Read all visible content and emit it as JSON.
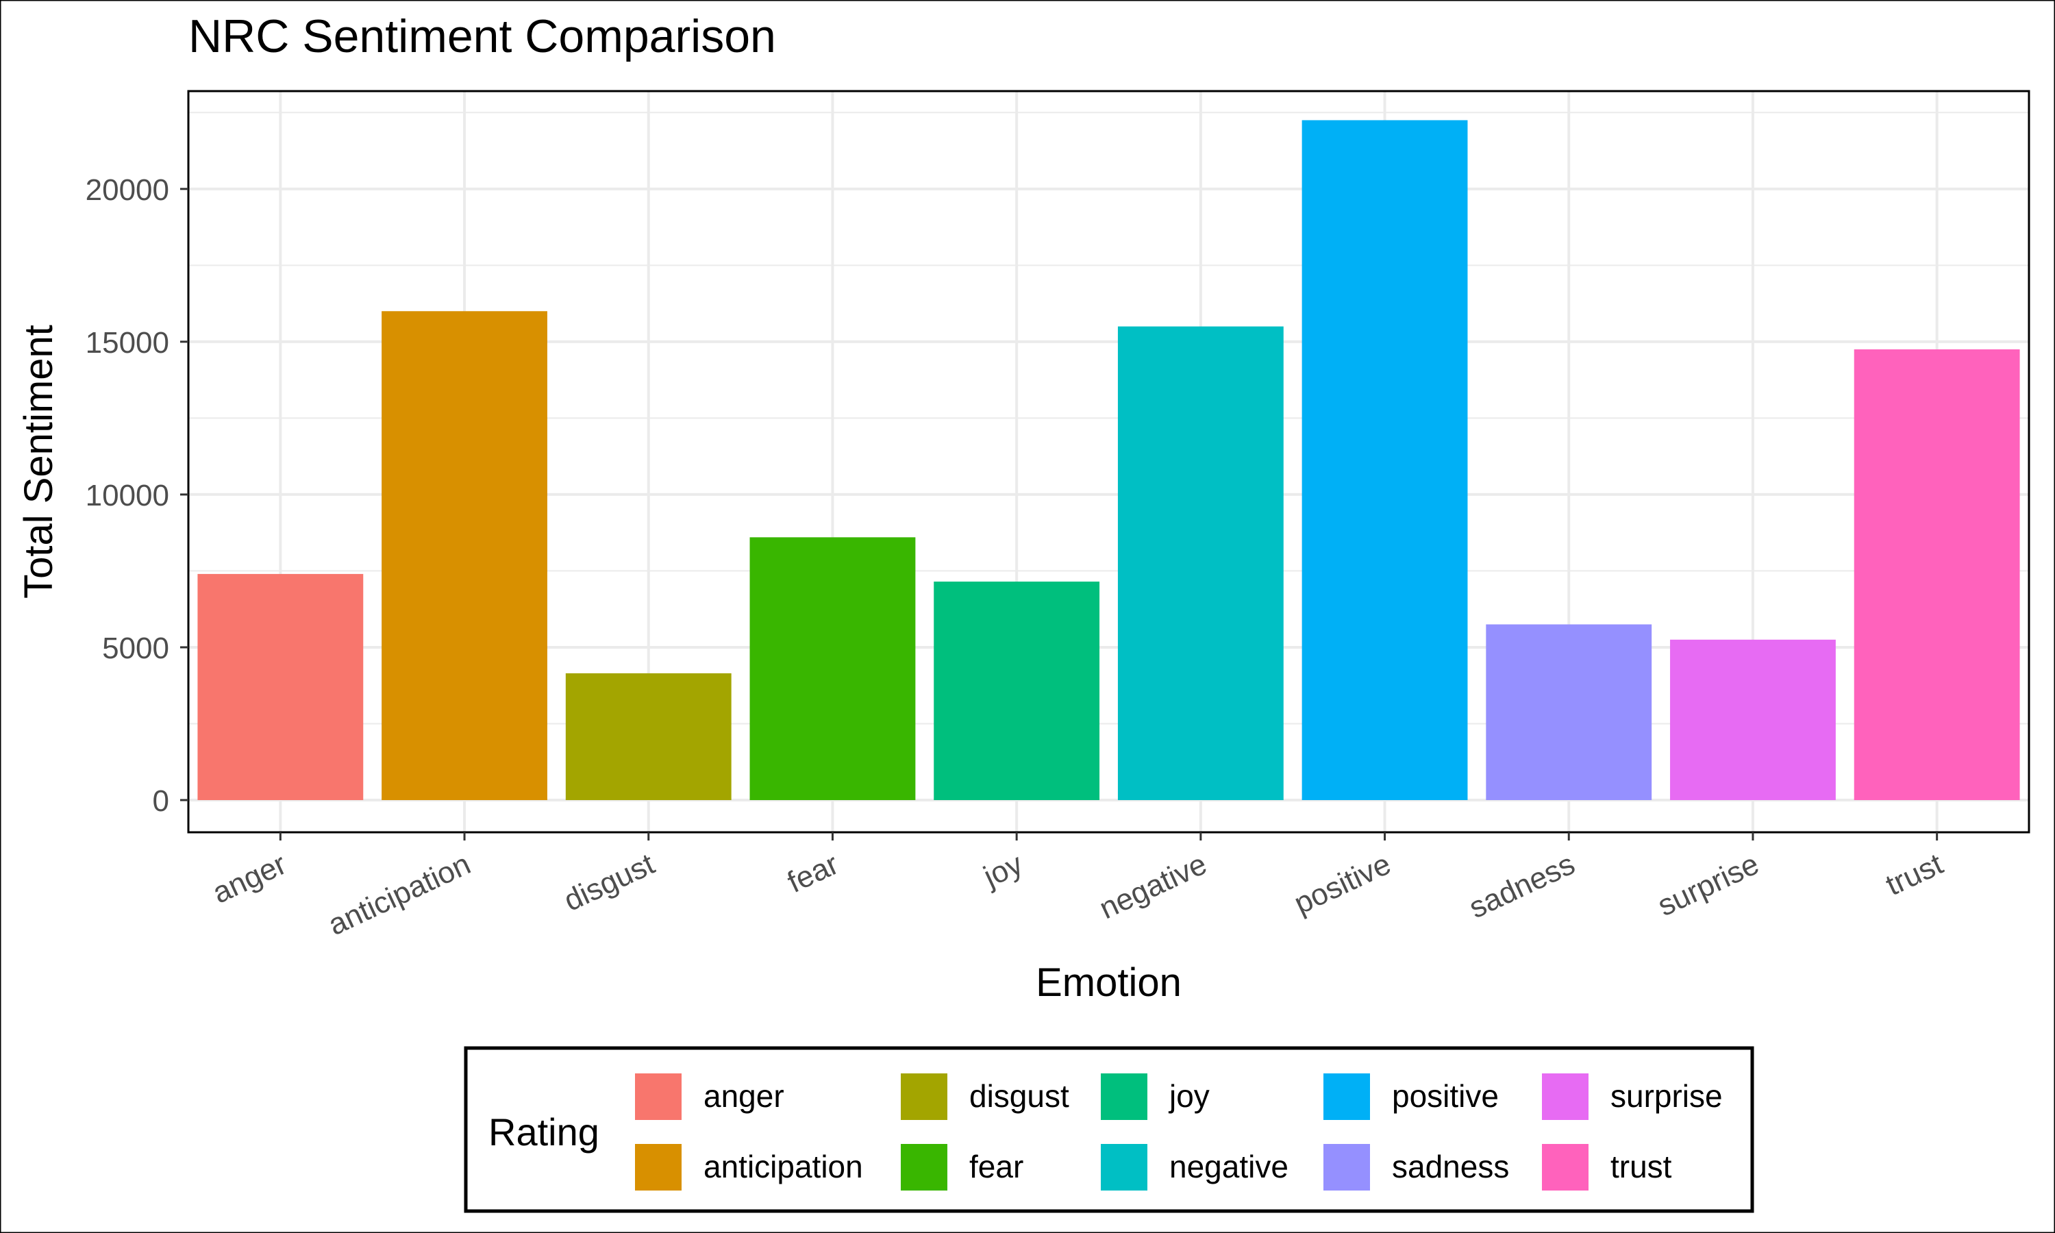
{
  "chart_data": {
    "type": "bar",
    "title": "NRC Sentiment Comparison",
    "xlabel": "Emotion",
    "ylabel": "Total Sentiment",
    "categories": [
      "anger",
      "anticipation",
      "disgust",
      "fear",
      "joy",
      "negative",
      "positive",
      "sadness",
      "surprise",
      "trust"
    ],
    "values": [
      7400,
      16000,
      4150,
      8600,
      7150,
      15500,
      22250,
      5750,
      5250,
      14750
    ],
    "colors": [
      "#F8766D",
      "#D89000",
      "#A3A500",
      "#39B600",
      "#00BF7D",
      "#00BFC4",
      "#00B0F6",
      "#9590FF",
      "#E76BF3",
      "#FF62BC"
    ],
    "ylim": [
      0,
      23000
    ],
    "yticks": [
      0,
      5000,
      10000,
      15000,
      20000
    ],
    "ytick_labels": [
      "0",
      "5000",
      "10000",
      "15000",
      "20000"
    ],
    "grid": true,
    "legend": {
      "title": "Rating",
      "position": "bottom",
      "entries": [
        "anger",
        "anticipation",
        "disgust",
        "fear",
        "joy",
        "negative",
        "positive",
        "sadness",
        "surprise",
        "trust"
      ]
    }
  }
}
